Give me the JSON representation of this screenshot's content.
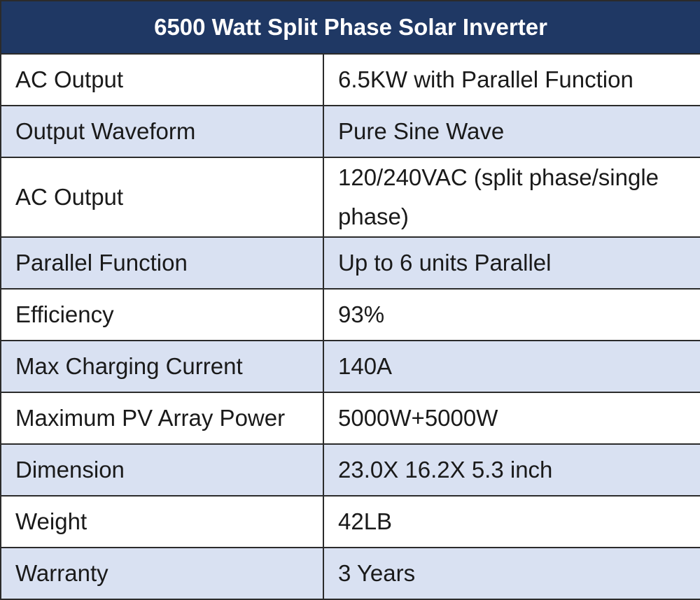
{
  "table": {
    "title": "6500 Watt Split Phase Solar Inverter",
    "colors": {
      "header_bg": "#1f3864",
      "header_text": "#ffffff",
      "row_white": "#ffffff",
      "row_blue": "#d9e1f2",
      "border": "#2b2b2b"
    },
    "rows": [
      {
        "label": "AC Output",
        "value": "6.5KW with Parallel Function"
      },
      {
        "label": "Output Waveform",
        "value": "Pure Sine Wave"
      },
      {
        "label": "AC Output",
        "value": "120/240VAC (split phase/single phase)"
      },
      {
        "label": "Parallel Function",
        "value": "Up to 6 units Parallel"
      },
      {
        "label": "Efficiency",
        "value": "93%"
      },
      {
        "label": "Max Charging Current",
        "value": "140A"
      },
      {
        "label": "Maximum PV Array Power",
        "value": "5000W+5000W"
      },
      {
        "label": "Dimension",
        "value": "23.0X 16.2X 5.3 inch"
      },
      {
        "label": "Weight",
        "value": "42LB"
      },
      {
        "label": "Warranty",
        "value": "3 Years"
      }
    ]
  }
}
